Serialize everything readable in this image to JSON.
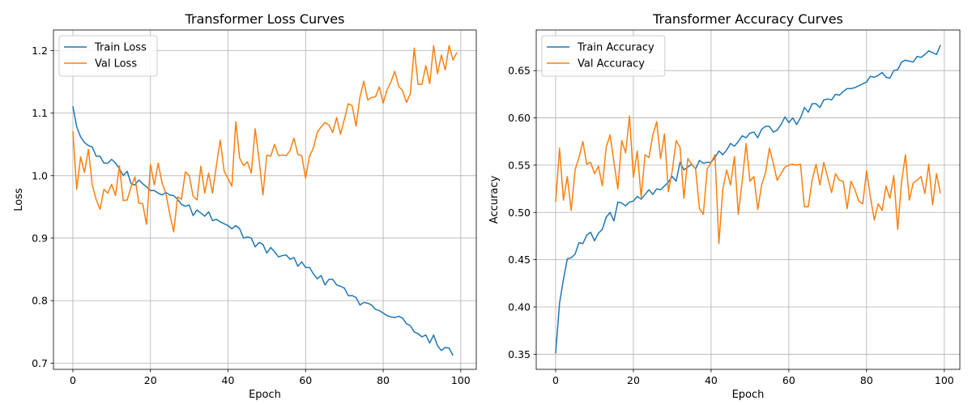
{
  "chart_data": [
    {
      "type": "line",
      "title": "Transformer Loss Curves",
      "xlabel": "Epoch",
      "ylabel": "Loss",
      "xlim": [
        -5,
        104
      ],
      "ylim": [
        0.69,
        1.233
      ],
      "xticks": [
        0,
        20,
        40,
        60,
        80,
        100
      ],
      "yticks": [
        0.7,
        0.8,
        0.9,
        1.0,
        1.1,
        1.2
      ],
      "ytick_labels": [
        "0.7",
        "0.8",
        "0.9",
        "1.0",
        "1.1",
        "1.2"
      ],
      "grid": true,
      "legend": "upper-left",
      "series": [
        {
          "name": "Train Loss",
          "color": "#1f77b4",
          "values": [
            1.111,
            1.078,
            1.062,
            1.053,
            1.048,
            1.046,
            1.031,
            1.031,
            1.02,
            1.02,
            1.026,
            1.02,
            1.011,
            1.0,
            1.007,
            0.987,
            0.985,
            0.993,
            0.987,
            0.982,
            0.976,
            0.976,
            0.972,
            0.969,
            0.973,
            0.969,
            0.968,
            0.962,
            0.954,
            0.951,
            0.953,
            0.936,
            0.945,
            0.94,
            0.935,
            0.942,
            0.928,
            0.93,
            0.926,
            0.923,
            0.92,
            0.915,
            0.92,
            0.915,
            0.9,
            0.902,
            0.9,
            0.886,
            0.893,
            0.89,
            0.876,
            0.885,
            0.878,
            0.87,
            0.872,
            0.873,
            0.866,
            0.869,
            0.855,
            0.862,
            0.853,
            0.853,
            0.843,
            0.835,
            0.84,
            0.825,
            0.834,
            0.834,
            0.825,
            0.823,
            0.82,
            0.808,
            0.808,
            0.805,
            0.793,
            0.797,
            0.796,
            0.793,
            0.786,
            0.784,
            0.78,
            0.776,
            0.774,
            0.773,
            0.775,
            0.772,
            0.763,
            0.76,
            0.75,
            0.747,
            0.742,
            0.745,
            0.732,
            0.745,
            0.728,
            0.72,
            0.725,
            0.724,
            0.712
          ]
        },
        {
          "name": "Val Loss",
          "color": "#ff7f0e",
          "values": [
            1.071,
            0.978,
            1.03,
            1.005,
            1.042,
            0.985,
            0.962,
            0.946,
            0.978,
            0.972,
            0.986,
            0.968,
            1.016,
            0.96,
            0.961,
            0.982,
            0.998,
            0.956,
            0.955,
            0.922,
            1.018,
            0.985,
            1.02,
            0.988,
            0.971,
            0.938,
            0.91,
            0.966,
            0.962,
            1.006,
            1.0,
            0.967,
            0.961,
            1.015,
            0.972,
            1.004,
            0.972,
            1.016,
            1.057,
            1.007,
            0.995,
            0.983,
            1.086,
            1.028,
            1.016,
            1.022,
            1.004,
            1.075,
            1.026,
            0.969,
            1.033,
            1.031,
            1.05,
            1.032,
            1.033,
            1.032,
            1.04,
            1.06,
            1.034,
            1.032,
            0.996,
            1.031,
            1.044,
            1.069,
            1.078,
            1.085,
            1.081,
            1.069,
            1.093,
            1.066,
            1.09,
            1.115,
            1.112,
            1.079,
            1.125,
            1.151,
            1.121,
            1.125,
            1.126,
            1.142,
            1.116,
            1.137,
            1.15,
            1.167,
            1.143,
            1.136,
            1.117,
            1.131,
            1.204,
            1.146,
            1.146,
            1.176,
            1.147,
            1.208,
            1.163,
            1.193,
            1.169,
            1.208,
            1.185,
            1.197
          ]
        }
      ]
    },
    {
      "type": "line",
      "title": "Transformer Accuracy Curves",
      "xlabel": "Epoch",
      "ylabel": "Accuracy",
      "xlim": [
        -5,
        104
      ],
      "ylim": [
        0.334,
        0.693
      ],
      "xticks": [
        0,
        20,
        40,
        60,
        80,
        100
      ],
      "yticks": [
        0.35,
        0.4,
        0.45,
        0.5,
        0.55,
        0.6,
        0.65
      ],
      "ytick_labels": [
        "0.35",
        "0.40",
        "0.45",
        "0.50",
        "0.55",
        "0.60",
        "0.65"
      ],
      "grid": true,
      "legend": "upper-left",
      "series": [
        {
          "name": "Train Accuracy",
          "color": "#1f77b4",
          "values": [
            0.351,
            0.404,
            0.429,
            0.451,
            0.452,
            0.456,
            0.468,
            0.467,
            0.476,
            0.479,
            0.47,
            0.478,
            0.482,
            0.495,
            0.5,
            0.491,
            0.511,
            0.51,
            0.507,
            0.511,
            0.512,
            0.517,
            0.514,
            0.519,
            0.524,
            0.519,
            0.525,
            0.524,
            0.528,
            0.532,
            0.538,
            0.533,
            0.553,
            0.545,
            0.548,
            0.551,
            0.546,
            0.555,
            0.552,
            0.553,
            0.553,
            0.558,
            0.565,
            0.561,
            0.566,
            0.573,
            0.57,
            0.575,
            0.581,
            0.579,
            0.584,
            0.585,
            0.579,
            0.588,
            0.591,
            0.591,
            0.585,
            0.587,
            0.593,
            0.601,
            0.595,
            0.6,
            0.593,
            0.6,
            0.611,
            0.606,
            0.615,
            0.615,
            0.611,
            0.619,
            0.62,
            0.619,
            0.625,
            0.624,
            0.628,
            0.631,
            0.631,
            0.632,
            0.634,
            0.636,
            0.638,
            0.644,
            0.643,
            0.645,
            0.648,
            0.643,
            0.642,
            0.65,
            0.651,
            0.659,
            0.661,
            0.66,
            0.659,
            0.665,
            0.664,
            0.667,
            0.671,
            0.669,
            0.667,
            0.677
          ]
        },
        {
          "name": "Val Accuracy",
          "color": "#ff7f0e",
          "values": [
            0.511,
            0.568,
            0.513,
            0.538,
            0.502,
            0.545,
            0.558,
            0.575,
            0.551,
            0.553,
            0.541,
            0.549,
            0.528,
            0.569,
            0.582,
            0.553,
            0.525,
            0.576,
            0.563,
            0.602,
            0.537,
            0.565,
            0.516,
            0.561,
            0.558,
            0.582,
            0.596,
            0.557,
            0.583,
            0.522,
            0.544,
            0.576,
            0.569,
            0.515,
            0.557,
            0.551,
            0.546,
            0.504,
            0.498,
            0.546,
            0.553,
            0.561,
            0.467,
            0.524,
            0.545,
            0.529,
            0.559,
            0.498,
            0.533,
            0.573,
            0.533,
            0.538,
            0.503,
            0.529,
            0.542,
            0.568,
            0.552,
            0.534,
            0.541,
            0.548,
            0.55,
            0.551,
            0.55,
            0.551,
            0.506,
            0.506,
            0.534,
            0.551,
            0.529,
            0.553,
            0.537,
            0.521,
            0.541,
            0.534,
            0.533,
            0.504,
            0.533,
            0.524,
            0.512,
            0.509,
            0.544,
            0.516,
            0.492,
            0.509,
            0.502,
            0.528,
            0.515,
            0.539,
            0.482,
            0.532,
            0.561,
            0.513,
            0.531,
            0.534,
            0.538,
            0.52,
            0.551,
            0.508,
            0.541,
            0.52
          ]
        }
      ]
    }
  ]
}
